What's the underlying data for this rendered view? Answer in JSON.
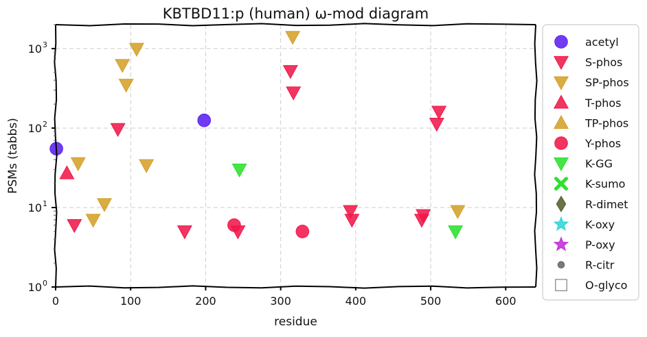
{
  "chart_data": {
    "type": "scatter",
    "title": "KBTBD11:p (human) ω-mod diagram",
    "xlabel": "residue",
    "ylabel": "PSMs (tabbs)",
    "xlim": [
      0,
      640
    ],
    "ylim": [
      1,
      2000
    ],
    "yscale": "log",
    "grid": true,
    "legend_position": "right outside",
    "x_ticks": [
      {
        "value": 0,
        "label": "0"
      },
      {
        "value": 100,
        "label": "100"
      },
      {
        "value": 200,
        "label": "200"
      },
      {
        "value": 300,
        "label": "300"
      },
      {
        "value": 400,
        "label": "400"
      },
      {
        "value": 500,
        "label": "500"
      },
      {
        "value": 600,
        "label": "600"
      }
    ],
    "y_ticks": [
      {
        "value": 1,
        "label": "10",
        "exp": "0"
      },
      {
        "value": 10,
        "label": "10",
        "exp": "1"
      },
      {
        "value": 100,
        "label": "10",
        "exp": "2"
      },
      {
        "value": 1000,
        "label": "10",
        "exp": "3"
      }
    ],
    "series": [
      {
        "name": "acetyl",
        "marker": "circle",
        "color": "#5b21f0",
        "points": [
          {
            "x": 1,
            "y": 55
          },
          {
            "x": 198,
            "y": 125
          }
        ]
      },
      {
        "name": "S-phos",
        "marker": "triangle-down",
        "color": "#f0184a",
        "points": [
          {
            "x": 25,
            "y": 6
          },
          {
            "x": 83,
            "y": 97
          },
          {
            "x": 172,
            "y": 5
          },
          {
            "x": 243,
            "y": 5
          },
          {
            "x": 313,
            "y": 520
          },
          {
            "x": 317,
            "y": 280
          },
          {
            "x": 393,
            "y": 9
          },
          {
            "x": 395,
            "y": 7
          },
          {
            "x": 488,
            "y": 7
          },
          {
            "x": 490,
            "y": 8
          },
          {
            "x": 508,
            "y": 113
          },
          {
            "x": 511,
            "y": 160
          }
        ]
      },
      {
        "name": "SP-phos",
        "marker": "triangle-down",
        "color": "#d4a02a",
        "points": [
          {
            "x": 30,
            "y": 36
          },
          {
            "x": 50,
            "y": 7
          },
          {
            "x": 65,
            "y": 11
          },
          {
            "x": 89,
            "y": 620
          },
          {
            "x": 94,
            "y": 350
          },
          {
            "x": 108,
            "y": 990
          },
          {
            "x": 121,
            "y": 34
          },
          {
            "x": 316,
            "y": 1400
          },
          {
            "x": 536,
            "y": 9
          }
        ]
      },
      {
        "name": "T-phos",
        "marker": "triangle-up",
        "color": "#f0184a",
        "points": [
          {
            "x": 15,
            "y": 27
          }
        ]
      },
      {
        "name": "TP-phos",
        "marker": "triangle-up",
        "color": "#d4a02a",
        "points": []
      },
      {
        "name": "Y-phos",
        "marker": "circle",
        "color": "#f0184a",
        "points": [
          {
            "x": 238,
            "y": 6
          },
          {
            "x": 329,
            "y": 5
          }
        ]
      },
      {
        "name": "K-GG",
        "marker": "triangle-down",
        "color": "#2ee02e",
        "points": [
          {
            "x": 245,
            "y": 30
          },
          {
            "x": 533,
            "y": 5
          }
        ]
      },
      {
        "name": "K-sumo",
        "marker": "x",
        "color": "#2ee02e",
        "points": []
      },
      {
        "name": "R-dimet",
        "marker": "diamond",
        "color": "#555f2d",
        "points": []
      },
      {
        "name": "K-oxy",
        "marker": "star",
        "color": "#2ed6d6",
        "points": []
      },
      {
        "name": "P-oxy",
        "marker": "star",
        "color": "#c22ed6",
        "points": []
      },
      {
        "name": "R-citr",
        "marker": "small-circle",
        "color": "#666666",
        "points": []
      },
      {
        "name": "O-glyco",
        "marker": "square-open",
        "color": "#888888",
        "points": []
      }
    ]
  }
}
